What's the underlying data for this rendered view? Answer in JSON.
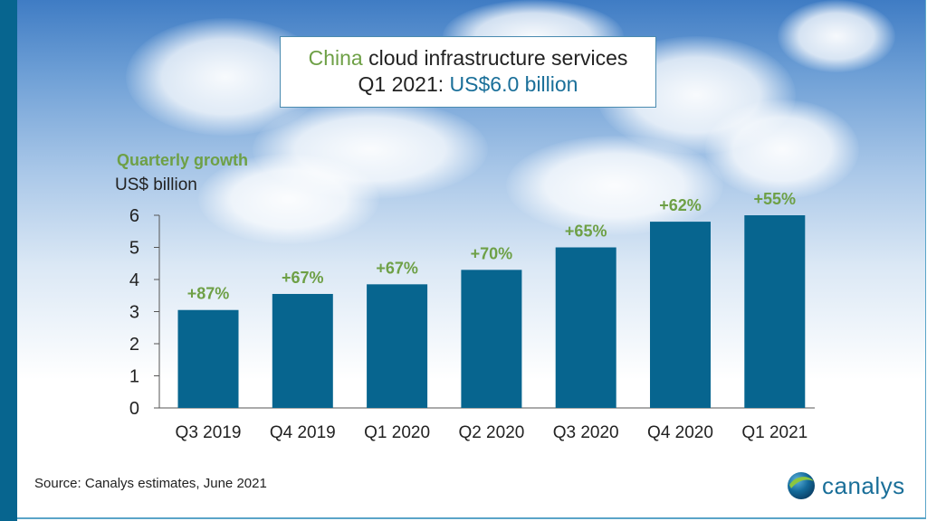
{
  "title": {
    "line1_highlight": "China",
    "line1_rest": " cloud infrastructure services",
    "line2_prefix": "Q1 2021: ",
    "line2_highlight": "US$6.0 billion"
  },
  "growth_label": "Quarterly growth",
  "unit_label": "US$ billion",
  "source": "Source: Canalys estimates, June 2021",
  "logo": {
    "text": "canalys",
    "icon": "globe-icon"
  },
  "colors": {
    "bar": "#07658f",
    "growth": "#6ea046",
    "accent_blue": "#1a6f99",
    "stripe": "#07658f"
  },
  "chart_data": {
    "type": "bar",
    "title": "China cloud infrastructure services Q1 2021: US$6.0 billion",
    "xlabel": "",
    "ylabel": "US$ billion",
    "ylim": [
      0,
      6
    ],
    "yticks": [
      0,
      1,
      2,
      3,
      4,
      5,
      6
    ],
    "grid": false,
    "categories": [
      "Q3 2019",
      "Q4 2019",
      "Q1 2020",
      "Q2 2020",
      "Q3 2020",
      "Q4 2020",
      "Q1 2021"
    ],
    "values": [
      3.05,
      3.55,
      3.85,
      4.3,
      5.0,
      5.8,
      6.0
    ],
    "data_labels": [
      "+87%",
      "+67%",
      "+67%",
      "+70%",
      "+65%",
      "+62%",
      "+55%"
    ],
    "data_label_meaning": "Quarterly growth"
  }
}
